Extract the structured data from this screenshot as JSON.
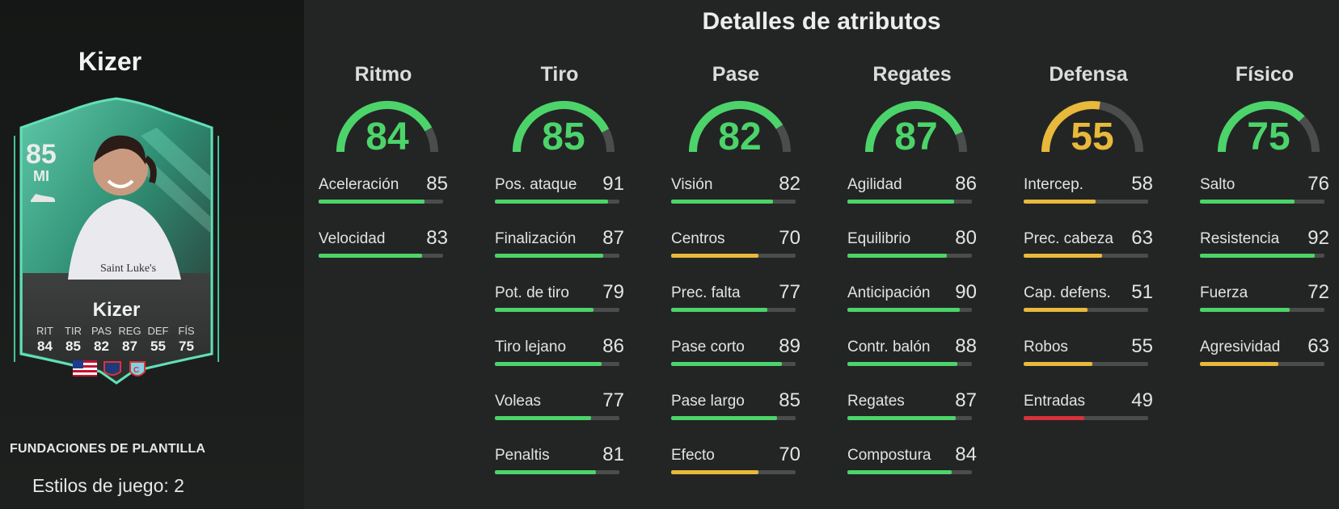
{
  "colors": {
    "green": "#4cd46a",
    "yellow": "#e8b93a",
    "red": "#d8323c",
    "track": "#4a4d4c"
  },
  "left_panel": {
    "player_name": "Kizer",
    "card": {
      "rating": "85",
      "position": "MI",
      "name": "Kizer",
      "stats": [
        {
          "label": "RIT",
          "value": "84"
        },
        {
          "label": "TIR",
          "value": "85"
        },
        {
          "label": "PAS",
          "value": "82"
        },
        {
          "label": "REG",
          "value": "87"
        },
        {
          "label": "DEF",
          "value": "55"
        },
        {
          "label": "FÍS",
          "value": "75"
        }
      ],
      "icons": [
        "boot-icon",
        "usa-flag-icon",
        "league-badge-icon",
        "club-crest-icon"
      ]
    },
    "squad_label": "FUNDACIONES DE PLANTILLA",
    "playstyles": "Estilos de juego: 2"
  },
  "attributes": {
    "title": "Detalles de atributos",
    "categories": [
      {
        "name": "Ritmo",
        "value": 84,
        "color": "green",
        "stats": [
          {
            "label": "Aceleración",
            "value": 85,
            "color": "green"
          },
          {
            "label": "Velocidad",
            "value": 83,
            "color": "green"
          }
        ]
      },
      {
        "name": "Tiro",
        "value": 85,
        "color": "green",
        "stats": [
          {
            "label": "Pos. ataque",
            "value": 91,
            "color": "green"
          },
          {
            "label": "Finalización",
            "value": 87,
            "color": "green"
          },
          {
            "label": "Pot. de tiro",
            "value": 79,
            "color": "green"
          },
          {
            "label": "Tiro lejano",
            "value": 86,
            "color": "green"
          },
          {
            "label": "Voleas",
            "value": 77,
            "color": "green"
          },
          {
            "label": "Penaltis",
            "value": 81,
            "color": "green"
          }
        ]
      },
      {
        "name": "Pase",
        "value": 82,
        "color": "green",
        "stats": [
          {
            "label": "Visión",
            "value": 82,
            "color": "green"
          },
          {
            "label": "Centros",
            "value": 70,
            "color": "yellow"
          },
          {
            "label": "Prec. falta",
            "value": 77,
            "color": "green"
          },
          {
            "label": "Pase corto",
            "value": 89,
            "color": "green"
          },
          {
            "label": "Pase largo",
            "value": 85,
            "color": "green"
          },
          {
            "label": "Efecto",
            "value": 70,
            "color": "yellow"
          }
        ]
      },
      {
        "name": "Regates",
        "value": 87,
        "color": "green",
        "stats": [
          {
            "label": "Agilidad",
            "value": 86,
            "color": "green"
          },
          {
            "label": "Equilibrio",
            "value": 80,
            "color": "green"
          },
          {
            "label": "Anticipación",
            "value": 90,
            "color": "green"
          },
          {
            "label": "Contr. balón",
            "value": 88,
            "color": "green"
          },
          {
            "label": "Regates",
            "value": 87,
            "color": "green"
          },
          {
            "label": "Compostura",
            "value": 84,
            "color": "green"
          }
        ]
      },
      {
        "name": "Defensa",
        "value": 55,
        "color": "yellow",
        "stats": [
          {
            "label": "Intercep.",
            "value": 58,
            "color": "yellow"
          },
          {
            "label": "Prec. cabeza",
            "value": 63,
            "color": "yellow"
          },
          {
            "label": "Cap. defens.",
            "value": 51,
            "color": "yellow"
          },
          {
            "label": "Robos",
            "value": 55,
            "color": "yellow"
          },
          {
            "label": "Entradas",
            "value": 49,
            "color": "red"
          }
        ]
      },
      {
        "name": "Físico",
        "value": 75,
        "color": "green",
        "stats": [
          {
            "label": "Salto",
            "value": 76,
            "color": "green"
          },
          {
            "label": "Resistencia",
            "value": 92,
            "color": "green"
          },
          {
            "label": "Fuerza",
            "value": 72,
            "color": "green"
          },
          {
            "label": "Agresividad",
            "value": 63,
            "color": "yellow"
          }
        ]
      }
    ]
  }
}
